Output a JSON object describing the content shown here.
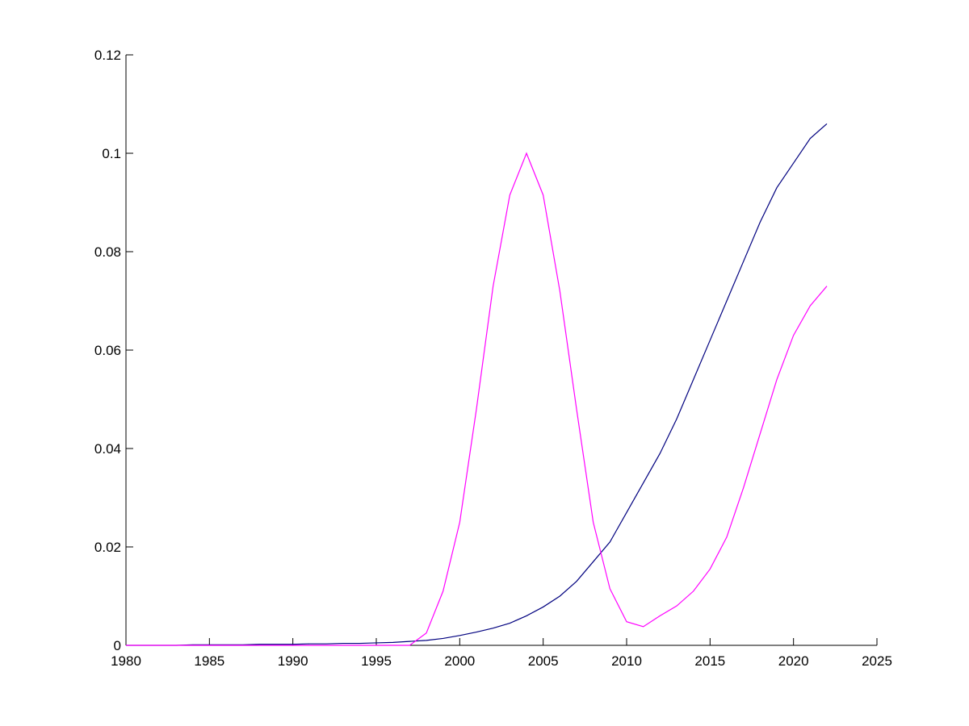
{
  "chart_data": {
    "type": "line",
    "x": [
      1980,
      1981,
      1982,
      1983,
      1984,
      1985,
      1986,
      1987,
      1988,
      1989,
      1990,
      1991,
      1992,
      1993,
      1994,
      1995,
      1996,
      1997,
      1998,
      1999,
      2000,
      2001,
      2002,
      2003,
      2004,
      2005,
      2006,
      2007,
      2008,
      2009,
      2010,
      2011,
      2012,
      2013,
      2014,
      2015,
      2016,
      2017,
      2018,
      2019,
      2020,
      2021,
      2022
    ],
    "series": [
      {
        "color": "#00007f",
        "values": [
          0,
          0,
          0,
          0,
          0.0001,
          0.0001,
          0.0001,
          0.0001,
          0.0002,
          0.0002,
          0.0002,
          0.0003,
          0.0003,
          0.0004,
          0.0004,
          0.0005,
          0.0006,
          0.0008,
          0.001,
          0.0014,
          0.002,
          0.0027,
          0.0035,
          0.0045,
          0.006,
          0.0078,
          0.01,
          0.013,
          0.017,
          0.021,
          0.027,
          0.033,
          0.039,
          0.046,
          0.054,
          0.062,
          0.07,
          0.078,
          0.086,
          0.093,
          0.098,
          0.103,
          0.106
        ]
      },
      {
        "color": "#ff00ff",
        "values": [
          0,
          0,
          0,
          0,
          0,
          0,
          0,
          0,
          0,
          0,
          0,
          0,
          0,
          0,
          0,
          0,
          0,
          0,
          0.0025,
          0.011,
          0.025,
          0.048,
          0.073,
          0.0915,
          0.1,
          0.0915,
          0.072,
          0.048,
          0.025,
          0.0115,
          0.0048,
          0.0038,
          0.006,
          0.008,
          0.011,
          0.0155,
          0.022,
          0.032,
          0.043,
          0.054,
          0.063,
          0.069,
          0.073
        ]
      }
    ],
    "xlim": [
      1980,
      2025
    ],
    "xticks": [
      1980,
      1985,
      1990,
      1995,
      2000,
      2005,
      2010,
      2015,
      2020,
      2025
    ],
    "ylim": [
      0,
      0.12
    ],
    "yticks": [
      0,
      0.02,
      0.04,
      0.06,
      0.08,
      0.1,
      0.12
    ],
    "grid": false
  }
}
